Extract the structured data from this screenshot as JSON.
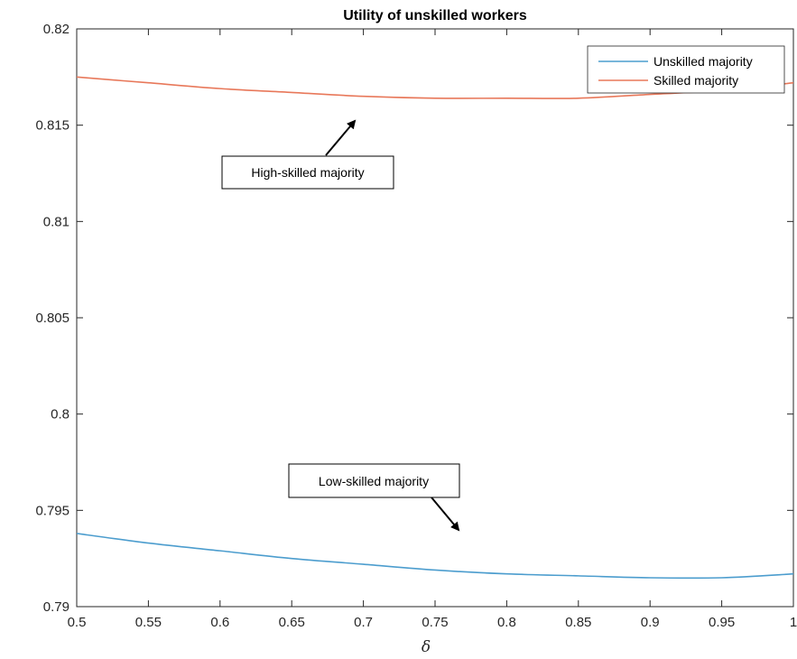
{
  "chart_data": {
    "type": "line",
    "title": "Utility of unskilled workers",
    "xlabel": "δ",
    "ylabel": "",
    "xlim": [
      0.5,
      1
    ],
    "ylim": [
      0.79,
      0.82
    ],
    "x_ticks": [
      "0.5",
      "0.55",
      "0.6",
      "0.65",
      "0.7",
      "0.75",
      "0.8",
      "0.85",
      "0.9",
      "0.95",
      "1"
    ],
    "y_ticks": [
      "0.79",
      "0.795",
      "0.8",
      "0.805",
      "0.81",
      "0.815",
      "0.82"
    ],
    "grid": false,
    "legend_position": "top-right",
    "x": [
      0.5,
      0.55,
      0.6,
      0.65,
      0.7,
      0.75,
      0.8,
      0.85,
      0.9,
      0.95,
      1.0
    ],
    "series": [
      {
        "name": "Unskilled majority",
        "color": "#4c9dce",
        "values": [
          0.7938,
          0.7933,
          0.7929,
          0.7925,
          0.7922,
          0.7919,
          0.7917,
          0.7916,
          0.7915,
          0.7915,
          0.7917
        ]
      },
      {
        "name": "Skilled majority",
        "color": "#e8785a",
        "values": [
          0.8175,
          0.8172,
          0.8169,
          0.8167,
          0.8165,
          0.8164,
          0.8164,
          0.8164,
          0.8166,
          0.8168,
          0.8172
        ]
      }
    ],
    "annotations": [
      {
        "text": "High-skilled majority",
        "arrow_to": {
          "x": 0.702,
          "y": 0.81535
        }
      },
      {
        "text": "Low-skilled majority",
        "arrow_to": {
          "x": 0.775,
          "y": 0.7939
        }
      }
    ]
  }
}
